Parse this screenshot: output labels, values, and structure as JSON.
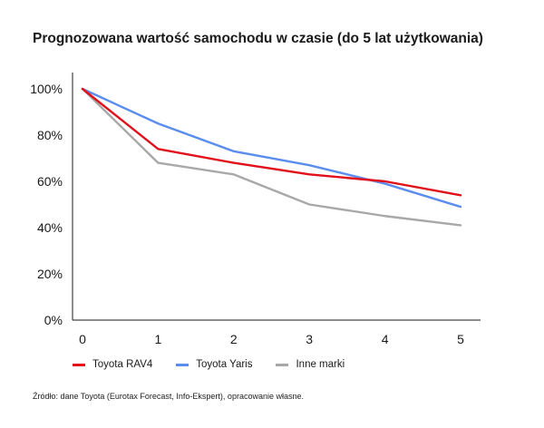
{
  "chart_data": {
    "type": "line",
    "title": "Prognozowana wartość samochodu w czasie (do 5 lat użytkowania)",
    "x": [
      0,
      1,
      2,
      3,
      4,
      5
    ],
    "x_tick_labels": [
      "0",
      "1",
      "2",
      "3",
      "4",
      "5"
    ],
    "y_tick_labels": [
      "0%",
      "20%",
      "40%",
      "60%",
      "80%",
      "100%"
    ],
    "ylim": [
      0,
      100
    ],
    "xlim": [
      0,
      5
    ],
    "grid": false,
    "legend_position": "bottom",
    "series": [
      {
        "name": "Toyota RAV4",
        "color": "#e1101a",
        "values": [
          100,
          74,
          68,
          63,
          60,
          54
        ]
      },
      {
        "name": "Toyota Yaris",
        "color": "#5b8def",
        "values": [
          100,
          85,
          73,
          67,
          59,
          49
        ]
      },
      {
        "name": "Inne marki",
        "color": "#a8a8a8",
        "values": [
          100,
          68,
          63,
          50,
          45,
          41
        ]
      }
    ],
    "source": "Źródło: dane Toyota (Eurotax Forecast, Info-Ekspert), opracowanie własne."
  }
}
